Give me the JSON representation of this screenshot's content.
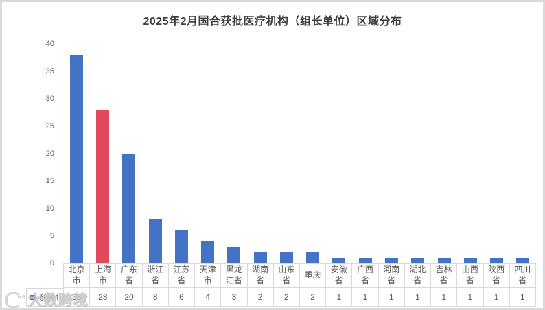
{
  "chart": {
    "title": "2025年2月国合获批医疗机构（组长单位）区域分布",
    "legend_label": "系列1"
  },
  "watermark": {
    "text": "大数跨境"
  },
  "chart_data": {
    "type": "bar",
    "title": "2025年2月国合获批医疗机构（组长单位）区域分布",
    "categories": [
      "北京市",
      "上海市",
      "广东省",
      "浙江省",
      "江苏省",
      "天津市",
      "黑龙江省",
      "湖南省",
      "山东省",
      "重庆",
      "安徽省",
      "广西省",
      "河南省",
      "湖北省",
      "吉林省",
      "山西省",
      "陕西省",
      "四川省"
    ],
    "series": [
      {
        "name": "系列1",
        "values": [
          38,
          28,
          20,
          8,
          6,
          4,
          3,
          2,
          2,
          2,
          1,
          1,
          1,
          1,
          1,
          1,
          1,
          1
        ]
      }
    ],
    "highlight_index": 1,
    "bar_color": "#4472C4",
    "highlight_color": "#E2495C",
    "yticks": [
      0,
      5,
      10,
      15,
      20,
      25,
      30,
      35,
      40
    ],
    "ylim": [
      0,
      40
    ],
    "xlabel": "",
    "ylabel": "",
    "grid": false,
    "legend_position": "data-table-left",
    "data_table": true,
    "axis_text_color": "#595959",
    "table_border_color": "#d9d9d9"
  }
}
